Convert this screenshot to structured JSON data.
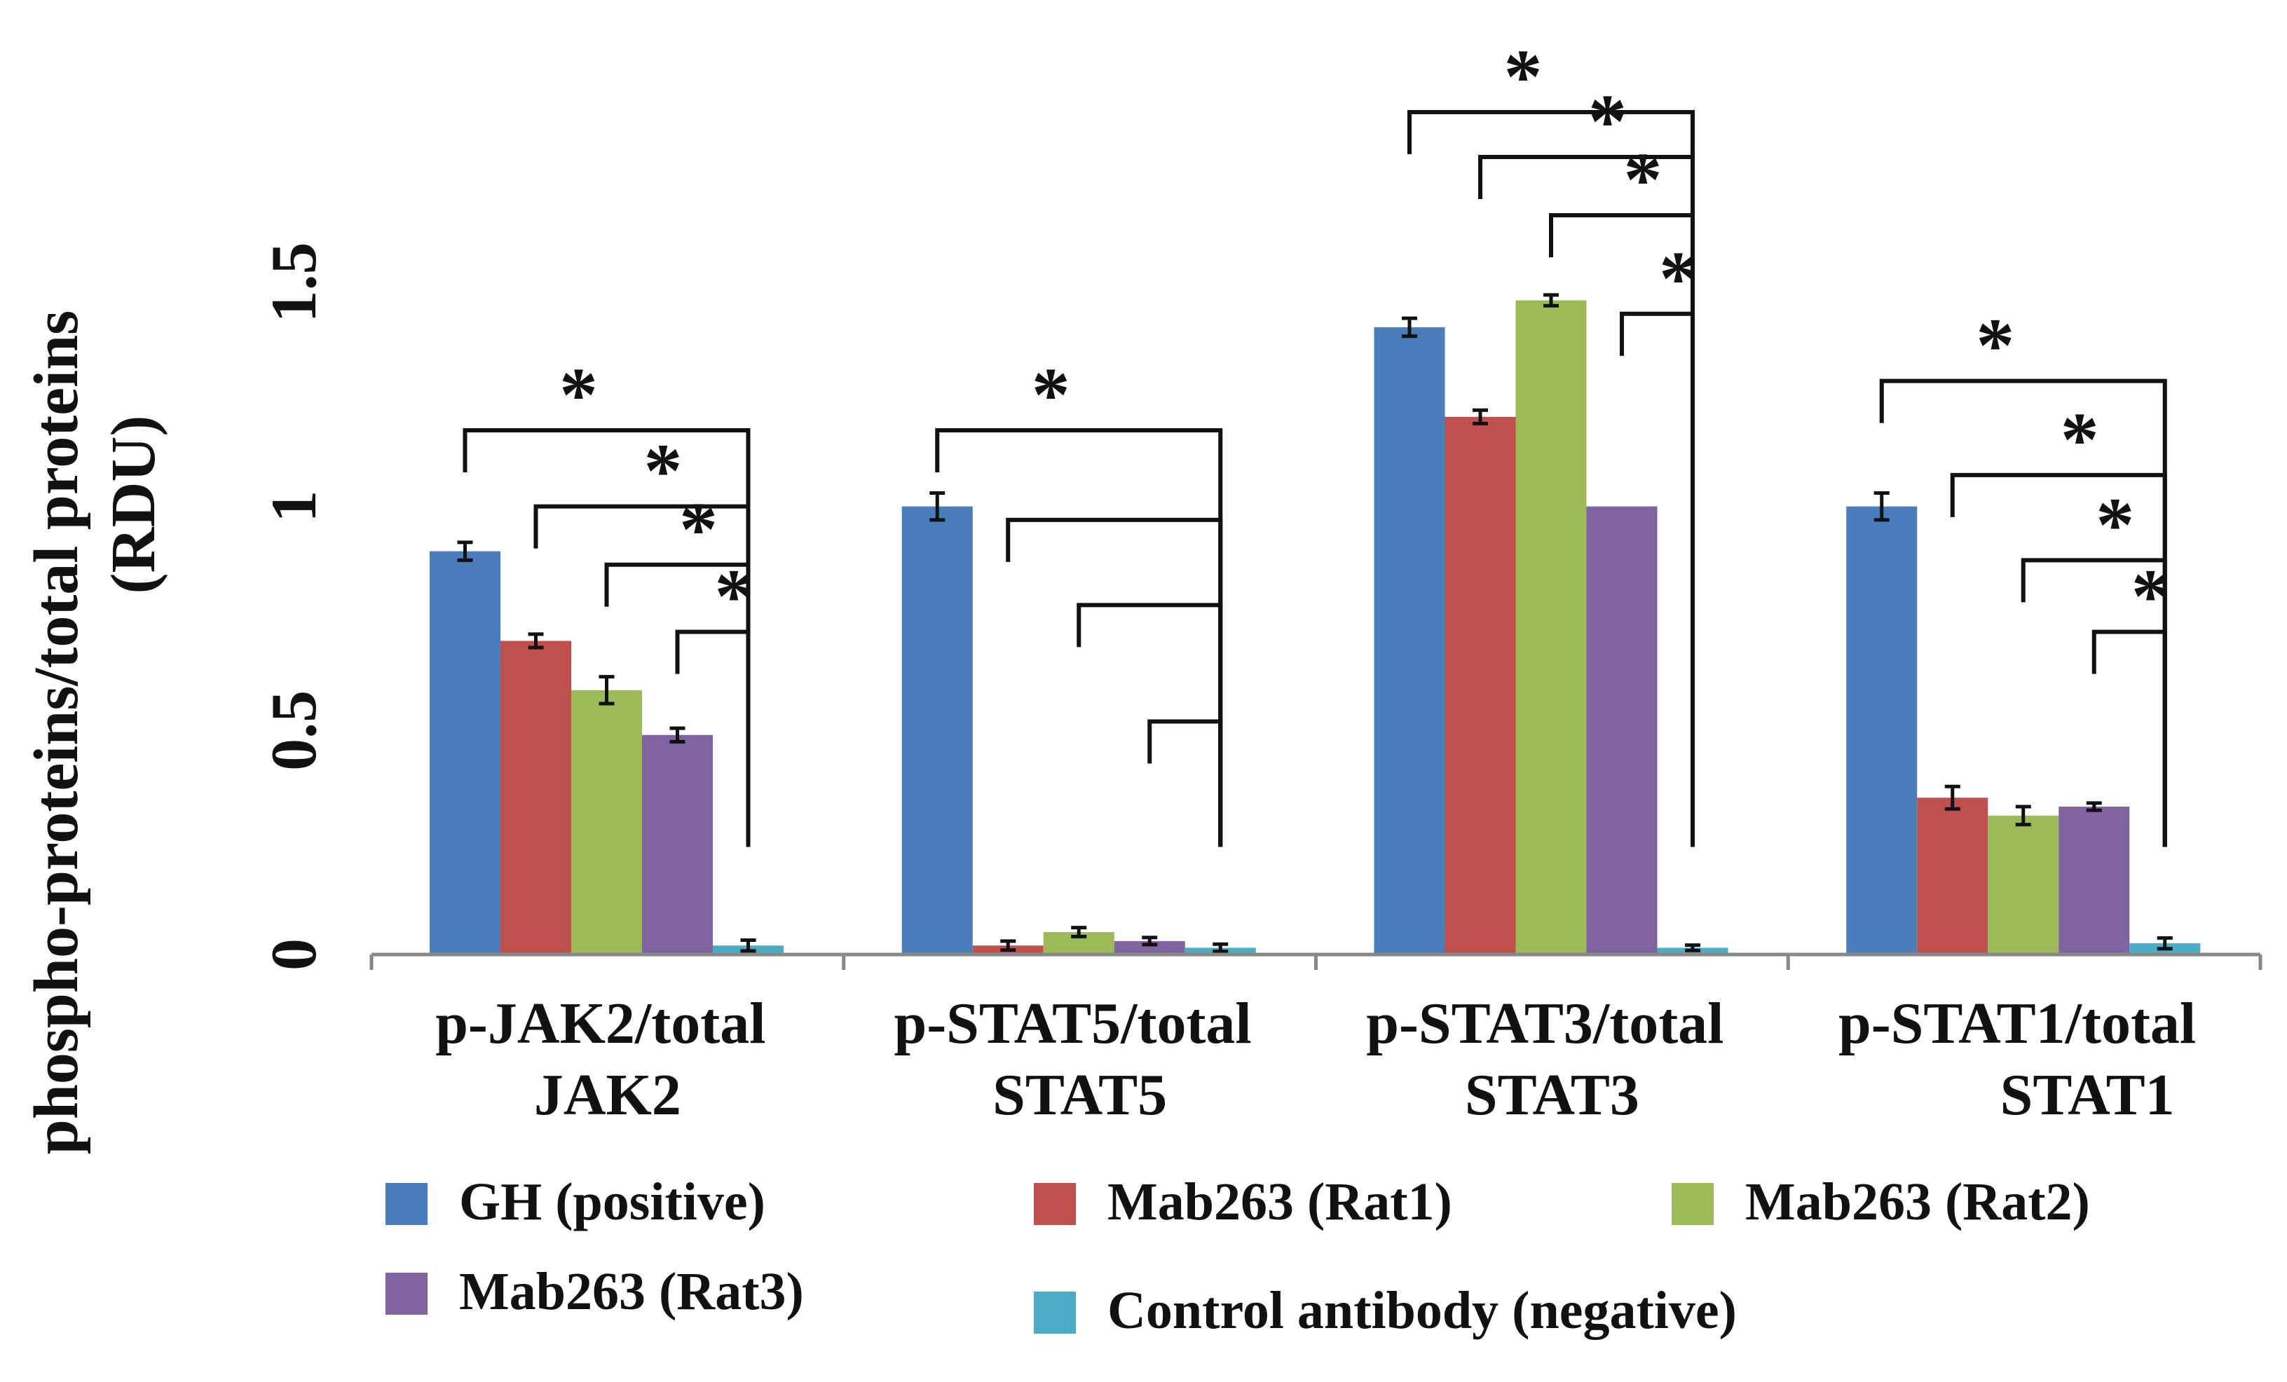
{
  "chart_data": {
    "type": "bar",
    "title": "",
    "ylabel_lines": [
      "phospho-proteins/total proteins",
      "(RDU)"
    ],
    "xlabel": "",
    "ylim": [
      0,
      1.5
    ],
    "yticks": [
      "0",
      "0.5",
      "1",
      "1.5"
    ],
    "yticks_values": [
      0,
      0.5,
      1,
      1.5
    ],
    "categories": [
      [
        "p-JAK2/total",
        "JAK2"
      ],
      [
        "p-STAT5/total",
        "STAT5"
      ],
      [
        "p-STAT3/total",
        "STAT3"
      ],
      [
        "p-STAT1/total",
        "STAT1"
      ]
    ],
    "series": [
      {
        "name": "GH (positive)",
        "color": "#4a7ebb",
        "values": [
          0.9,
          1.0,
          1.4,
          1.0
        ],
        "errors": [
          0.02,
          0.03,
          0.02,
          0.03
        ]
      },
      {
        "name": "Mab263 (Rat1)",
        "color": "#c0504d",
        "values": [
          0.7,
          0.02,
          1.2,
          0.35
        ],
        "errors": [
          0.015,
          0.01,
          0.015,
          0.025
        ]
      },
      {
        "name": "Mab263 (Rat2)",
        "color": "#9bbb59",
        "values": [
          0.59,
          0.05,
          1.46,
          0.31
        ],
        "errors": [
          0.03,
          0.01,
          0.012,
          0.02
        ]
      },
      {
        "name": "Mab263 (Rat3)",
        "color": "#8064a2",
        "values": [
          0.49,
          0.03,
          1.0,
          0.33
        ],
        "errors": [
          0.015,
          0.008,
          0.0,
          0.008
        ]
      },
      {
        "name": "Control antibody (negative)",
        "color": "#4bacc6",
        "values": [
          0.02,
          0.015,
          0.015,
          0.025
        ],
        "errors": [
          0.012,
          0.008,
          0.006,
          0.012
        ]
      }
    ],
    "significance_marker": "*",
    "significance": [
      {
        "category": 0,
        "brackets": [
          {
            "from": 0,
            "to": 4,
            "star": true,
            "level": 1.17
          },
          {
            "from": 1,
            "to": 4,
            "star": true,
            "level": 1.0
          },
          {
            "from": 2,
            "to": 4,
            "star": true,
            "level": 0.87
          },
          {
            "from": 3,
            "to": 4,
            "star": true,
            "level": 0.72
          }
        ]
      },
      {
        "category": 1,
        "brackets": [
          {
            "from": 0,
            "to": 4,
            "star": true,
            "level": 1.17
          },
          {
            "from": 1,
            "to": 4,
            "star": false,
            "level": 0.97
          },
          {
            "from": 2,
            "to": 4,
            "star": false,
            "level": 0.78
          },
          {
            "from": 3,
            "to": 4,
            "star": false,
            "level": 0.52
          }
        ]
      },
      {
        "category": 2,
        "brackets": [
          {
            "from": 0,
            "to": 4,
            "star": true,
            "level": 1.88
          },
          {
            "from": 1,
            "to": 4,
            "star": true,
            "level": 1.78
          },
          {
            "from": 2,
            "to": 4,
            "star": true,
            "level": 1.65
          },
          {
            "from": 3,
            "to": 4,
            "star": true,
            "level": 1.43
          }
        ]
      },
      {
        "category": 3,
        "brackets": [
          {
            "from": 0,
            "to": 4,
            "star": true,
            "level": 1.28
          },
          {
            "from": 1,
            "to": 4,
            "star": true,
            "level": 1.07
          },
          {
            "from": 2,
            "to": 4,
            "star": true,
            "level": 0.88
          },
          {
            "from": 3,
            "to": 4,
            "star": true,
            "level": 0.72
          }
        ]
      }
    ],
    "legend_position": "bottom"
  }
}
